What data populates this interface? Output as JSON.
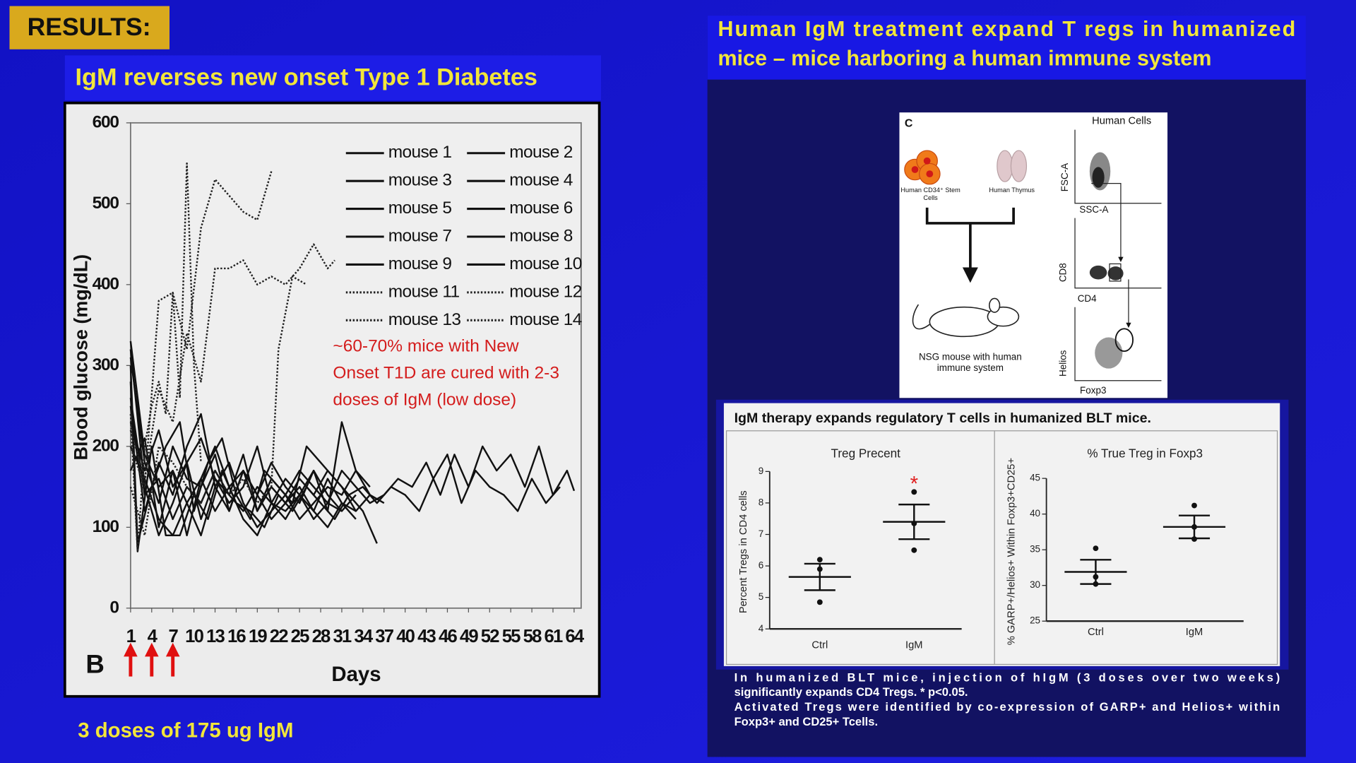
{
  "header": {
    "label": "RESULTS:"
  },
  "left": {
    "title": "IgM reverses new onset Type 1 Diabetes",
    "note": "3 doses of 175 ug IgM"
  },
  "right": {
    "title": [
      "Human IgM treatment expand T regs in humanized",
      "mice – mice harboring a human immune system"
    ]
  },
  "diagram": {
    "panel": "C",
    "stem_cells": [
      "Human CD34⁺ Stem",
      "Cells"
    ],
    "thymus": "Human Thymus",
    "mouse": [
      "NSG mouse with human",
      "immune system"
    ],
    "flow_title": "Human Cells",
    "axes": [
      "FSC-A",
      "SSC-A",
      "CD8",
      "CD4",
      "Helios",
      "Foxp3"
    ]
  },
  "figure": {
    "title": "IgM therapy expands regulatory T cells in humanized BLT mice.",
    "caption": [
      "In humanized BLT mice, injection of hIgM (3 doses over two weeks)",
      "significantly expands CD4 Tregs. * p<0.05.",
      "Activated Tregs were identified by co-expression of GARP+ and Helios+ within",
      "Foxp3+ and CD25+ Tcells."
    ]
  },
  "chart_data": [
    {
      "type": "line",
      "panel_label": "B",
      "xlabel": "Days",
      "ylabel": "Blood glucose (mg/dL)",
      "xlim": [
        1,
        65
      ],
      "ylim": [
        0,
        600
      ],
      "xticks": [
        1,
        4,
        7,
        10,
        13,
        16,
        19,
        22,
        25,
        28,
        31,
        34,
        37,
        40,
        43,
        46,
        49,
        52,
        55,
        58,
        61,
        64
      ],
      "yticks": [
        0,
        100,
        200,
        300,
        400,
        500,
        600
      ],
      "legend": "upper right",
      "annotation": [
        "~60-70% mice with New",
        "Onset T1D are cured with 2-3",
        "doses of IgM (low dose)"
      ],
      "annotation_color": "#d41c1c",
      "dose_days": [
        1,
        4,
        7
      ],
      "dose_color": "#e01010",
      "series": [
        {
          "name": "mouse 1",
          "color": "#111111",
          "style": "solid",
          "x": [
            1,
            3,
            5,
            7,
            9,
            11,
            13,
            15,
            17,
            19,
            21,
            23,
            25,
            27,
            29,
            31,
            33,
            35,
            37,
            39,
            41,
            43,
            45,
            47,
            49,
            51,
            53,
            55,
            57,
            59,
            61,
            63,
            64
          ],
          "values": [
            330,
            190,
            150,
            170,
            130,
            160,
            200,
            150,
            170,
            120,
            160,
            140,
            170,
            150,
            130,
            170,
            150,
            130,
            140,
            160,
            150,
            180,
            140,
            190,
            150,
            200,
            170,
            190,
            150,
            200,
            140,
            170,
            145
          ]
        },
        {
          "name": "mouse 2",
          "color": "#111111",
          "style": "solid",
          "x": [
            1,
            2,
            4,
            6,
            8,
            10,
            12,
            14,
            16,
            18,
            20,
            22,
            24,
            26,
            28,
            30,
            32,
            34,
            36,
            38,
            40,
            42,
            44,
            46,
            48,
            50,
            52,
            54,
            56,
            58,
            60,
            62
          ],
          "values": [
            300,
            80,
            150,
            200,
            230,
            120,
            180,
            210,
            140,
            110,
            170,
            150,
            130,
            200,
            180,
            160,
            140,
            150,
            130,
            150,
            140,
            120,
            160,
            190,
            130,
            170,
            150,
            140,
            120,
            160,
            130,
            150
          ]
        },
        {
          "name": "mouse 3",
          "color": "#111111",
          "style": "solid",
          "x": [
            1,
            3,
            5,
            7,
            9,
            11,
            13,
            15,
            17,
            19,
            21,
            23,
            25,
            27,
            29,
            31,
            33,
            35
          ],
          "values": [
            320,
            150,
            90,
            130,
            180,
            210,
            160,
            140,
            190,
            120,
            150,
            130,
            160,
            140,
            170,
            150,
            120,
            140
          ]
        },
        {
          "name": "mouse 4",
          "color": "#111111",
          "style": "solid",
          "x": [
            1,
            2,
            4,
            6,
            8,
            10,
            12,
            14,
            16,
            18,
            20,
            22,
            24,
            26,
            28,
            30,
            32,
            34,
            36
          ],
          "values": [
            280,
            70,
            200,
            90,
            90,
            140,
            110,
            170,
            130,
            120,
            100,
            140,
            120,
            150,
            130,
            110,
            140,
            120,
            80
          ]
        },
        {
          "name": "mouse 5",
          "color": "#111111",
          "style": "solid",
          "x": [
            1,
            3,
            5,
            7,
            9,
            11,
            13,
            15,
            17,
            19,
            21,
            23,
            25,
            27,
            29,
            31,
            33
          ],
          "values": [
            250,
            120,
            180,
            140,
            200,
            240,
            150,
            120,
            170,
            140,
            110,
            130,
            150,
            120,
            160,
            130,
            110
          ]
        },
        {
          "name": "mouse 6",
          "color": "#111111",
          "style": "solid",
          "x": [
            1,
            3,
            5,
            7,
            9,
            11,
            13,
            15,
            17,
            19,
            21,
            23,
            25,
            27,
            29,
            31,
            33,
            35
          ],
          "values": [
            200,
            160,
            110,
            90,
            130,
            90,
            150,
            180,
            130,
            100,
            120,
            140,
            110,
            130,
            150,
            140,
            170,
            150
          ]
        },
        {
          "name": "mouse 7",
          "color": "#111111",
          "style": "solid",
          "x": [
            1,
            3,
            5,
            7,
            9,
            11,
            13,
            15,
            17,
            19,
            21,
            23,
            25,
            27,
            29,
            31,
            33,
            35,
            37
          ],
          "values": [
            230,
            170,
            220,
            150,
            180,
            110,
            160,
            130,
            150,
            200,
            130,
            160,
            140,
            170,
            120,
            230,
            170,
            140,
            130
          ]
        },
        {
          "name": "mouse 8",
          "color": "#111111",
          "style": "solid",
          "x": [
            1,
            3,
            5,
            7,
            9,
            11,
            13,
            15,
            17,
            19,
            21,
            23,
            25,
            27,
            29,
            31,
            33
          ],
          "values": [
            170,
            210,
            100,
            170,
            90,
            160,
            120,
            150,
            110,
            90,
            130,
            110,
            140,
            120,
            100,
            130,
            120
          ]
        },
        {
          "name": "mouse 9",
          "color": "#111111",
          "style": "solid",
          "x": [
            1,
            3,
            5,
            7,
            9,
            11,
            13,
            15,
            17,
            19,
            21,
            23,
            25,
            27,
            29,
            31
          ],
          "values": [
            310,
            180,
            130,
            200,
            160,
            150,
            190,
            120,
            170,
            140,
            180,
            150,
            130,
            170,
            140,
            120
          ]
        },
        {
          "name": "mouse 10",
          "color": "#111111",
          "style": "solid",
          "x": [
            1,
            3,
            5,
            7,
            9,
            11,
            13,
            15,
            17,
            19,
            21,
            23,
            25,
            27,
            29,
            31,
            33
          ],
          "values": [
            260,
            140,
            160,
            110,
            150,
            130,
            170,
            140,
            120,
            150,
            130,
            120,
            140,
            110,
            130,
            120,
            140
          ]
        },
        {
          "name": "mouse 11",
          "color": "#222222",
          "style": "dotted",
          "x": [
            1,
            2,
            3,
            4,
            5,
            6,
            7,
            8,
            9,
            10,
            11
          ],
          "values": [
            240,
            70,
            200,
            250,
            280,
            240,
            390,
            260,
            550,
            300,
            180
          ]
        },
        {
          "name": "mouse 12",
          "color": "#222222",
          "style": "dotted",
          "x": [
            1,
            3,
            5,
            7,
            9,
            11,
            13,
            15,
            17,
            19,
            21
          ],
          "values": [
            200,
            150,
            380,
            390,
            320,
            470,
            530,
            510,
            490,
            480,
            540
          ]
        },
        {
          "name": "mouse 13",
          "color": "#222222",
          "style": "dotted",
          "x": [
            1,
            3,
            5,
            7,
            9,
            11,
            13,
            15,
            17,
            19,
            21,
            23,
            25,
            27,
            29,
            30
          ],
          "values": [
            220,
            160,
            270,
            230,
            340,
            280,
            420,
            420,
            430,
            400,
            410,
            400,
            420,
            450,
            420,
            430
          ]
        },
        {
          "name": "mouse 14",
          "color": "#222222",
          "style": "dotted",
          "x": [
            1,
            3,
            5,
            7,
            9,
            11,
            13,
            15,
            17,
            19,
            21,
            22,
            24,
            26
          ],
          "values": [
            150,
            90,
            200,
            180,
            150,
            130,
            170,
            140,
            160,
            130,
            150,
            320,
            410,
            400
          ]
        }
      ]
    },
    {
      "type": "dot",
      "title": "Treg Precent",
      "ylabel": "Percent Tregs in CD4 cells",
      "categories": [
        "Ctrl",
        "IgM"
      ],
      "points": [
        [
          6.2,
          5.9,
          4.85
        ],
        [
          8.35,
          7.35,
          6.5
        ]
      ],
      "means": [
        5.65,
        7.4
      ],
      "errors": [
        0.42,
        0.55
      ],
      "ylim": [
        4,
        9
      ],
      "yticks": [
        4,
        5,
        6,
        7,
        8,
        9
      ],
      "color": "#111111",
      "annotation": {
        "text": "*",
        "category": "IgM",
        "color": "#e02020"
      }
    },
    {
      "type": "dot",
      "title": "% True Treg in Foxp3",
      "ylabel": "% GARP+/Helios+ Within Foxp3+CD25+",
      "categories": [
        "Ctrl",
        "IgM"
      ],
      "points": [
        [
          35.2,
          31.2,
          30.2
        ],
        [
          41.2,
          38.2,
          36.5
        ]
      ],
      "means": [
        31.9,
        38.2
      ],
      "errors": [
        1.7,
        1.6
      ],
      "ylim": [
        25,
        45
      ],
      "yticks": [
        25,
        30,
        35,
        40,
        45
      ],
      "color": "#111111"
    }
  ]
}
